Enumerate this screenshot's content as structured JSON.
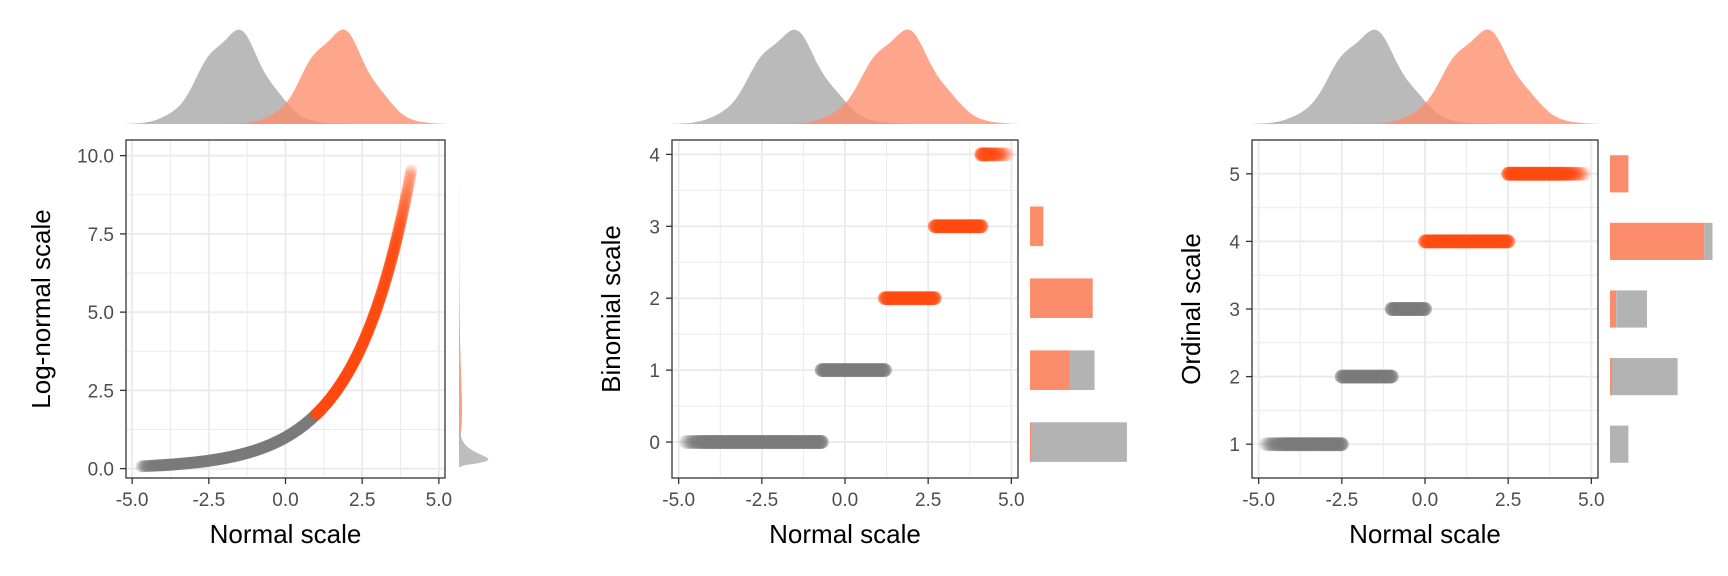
{
  "colors": {
    "normal": "#7a7a7a",
    "normal_fill": "#b3b3b3",
    "highlight": "#ff4a10",
    "highlight_fill": "#fc8d6c",
    "grid": "#ebebeb",
    "panel_border": "#333333"
  },
  "chart_data": [
    {
      "type": "scatter",
      "title": "",
      "xlabel": "Normal scale",
      "ylabel": "Log-normal scale",
      "xlim": [
        -5.2,
        5.2
      ],
      "ylim": [
        -0.3,
        10.5
      ],
      "x_ticks": [
        -5,
        -2.5,
        0,
        2.5,
        5
      ],
      "x_tick_labels": [
        "-5.0",
        "-2.5",
        "0.0",
        "2.5",
        "5.0"
      ],
      "y_ticks": [
        0,
        2.5,
        5,
        7.5,
        10
      ],
      "y_tick_labels": [
        "0.0",
        "2.5",
        "5.0",
        "7.5",
        "10.0"
      ],
      "grid": true,
      "curve": "y = exp(0.55 * x)",
      "series": [
        {
          "x_range": [
            -4.7,
            1.0
          ],
          "color": "normal",
          "shape": "exponential curve"
        },
        {
          "x_range": [
            1.0,
            4.1
          ],
          "color": "highlight",
          "shape": "exponential curve"
        }
      ],
      "top_density": {
        "gray_mean": -1.7,
        "gray_sd": 1.0,
        "orange_mean": 1.7,
        "orange_sd": 1.0
      },
      "right_marginal": "density"
    },
    {
      "type": "scatter",
      "title": "",
      "xlabel": "Normal scale",
      "ylabel": "Binomial scale",
      "xlim": [
        -5.2,
        5.2
      ],
      "ylim": [
        -0.5,
        4.2
      ],
      "x_ticks": [
        -5,
        -2.5,
        0,
        2.5,
        5
      ],
      "x_tick_labels": [
        "-5.0",
        "-2.5",
        "0.0",
        "2.5",
        "5.0"
      ],
      "y_ticks": [
        0,
        1,
        2,
        3,
        4
      ],
      "y_tick_labels": [
        "0",
        "1",
        "2",
        "3",
        "4"
      ],
      "grid": true,
      "levels": [
        {
          "y": 0,
          "x_range": [
            -4.8,
            -0.7
          ],
          "color": "normal"
        },
        {
          "y": 1,
          "x_range": [
            -0.7,
            1.2
          ],
          "color": "normal"
        },
        {
          "y": 2,
          "x_range": [
            1.2,
            2.7
          ],
          "color": "highlight"
        },
        {
          "y": 3,
          "x_range": [
            2.7,
            4.1
          ],
          "color": "highlight"
        },
        {
          "y": 4,
          "x_range": [
            4.1,
            4.9
          ],
          "color": "highlight"
        }
      ],
      "top_density": {
        "gray_mean": -1.7,
        "gray_sd": 1.0,
        "orange_mean": 1.7,
        "orange_sd": 1.0
      },
      "right_marginal": "bars",
      "bars": [
        {
          "y": 0,
          "gray": 0.5,
          "orange": 0.01
        },
        {
          "y": 1,
          "gray": 0.13,
          "orange": 0.21
        },
        {
          "y": 2,
          "gray": 0.0,
          "orange": 0.33
        },
        {
          "y": 3,
          "gray": 0.0,
          "orange": 0.07
        }
      ]
    },
    {
      "type": "scatter",
      "title": "",
      "xlabel": "Normal scale",
      "ylabel": "Ordinal scale",
      "xlim": [
        -5.2,
        5.2
      ],
      "ylim": [
        0.5,
        5.5
      ],
      "x_ticks": [
        -5,
        -2.5,
        0,
        2.5,
        5
      ],
      "x_tick_labels": [
        "-5.0",
        "-2.5",
        "0.0",
        "2.5",
        "5.0"
      ],
      "y_ticks": [
        1,
        2,
        3,
        4,
        5
      ],
      "y_tick_labels": [
        "1",
        "2",
        "3",
        "4",
        "5"
      ],
      "grid": true,
      "levels": [
        {
          "y": 1,
          "x_range": [
            -4.8,
            -2.5
          ],
          "color": "normal"
        },
        {
          "y": 2,
          "x_range": [
            -2.5,
            -1.0
          ],
          "color": "normal"
        },
        {
          "y": 3,
          "x_range": [
            -1.0,
            0.0
          ],
          "color": "normal"
        },
        {
          "y": 4,
          "x_range": [
            0.0,
            2.5
          ],
          "color": "highlight"
        },
        {
          "y": 5,
          "x_range": [
            2.5,
            4.8
          ],
          "color": "highlight"
        }
      ],
      "top_density": {
        "gray_mean": -1.7,
        "gray_sd": 1.0,
        "orange_mean": 1.7,
        "orange_sd": 1.0
      },
      "right_marginal": "bars",
      "bars": [
        {
          "y": 1,
          "gray": 0.09,
          "orange": 0.0
        },
        {
          "y": 2,
          "gray": 0.32,
          "orange": 0.01
        },
        {
          "y": 3,
          "gray": 0.15,
          "orange": 0.03
        },
        {
          "y": 4,
          "gray": 0.04,
          "orange": 0.46
        },
        {
          "y": 5,
          "gray": 0.0,
          "orange": 0.09
        }
      ]
    }
  ]
}
